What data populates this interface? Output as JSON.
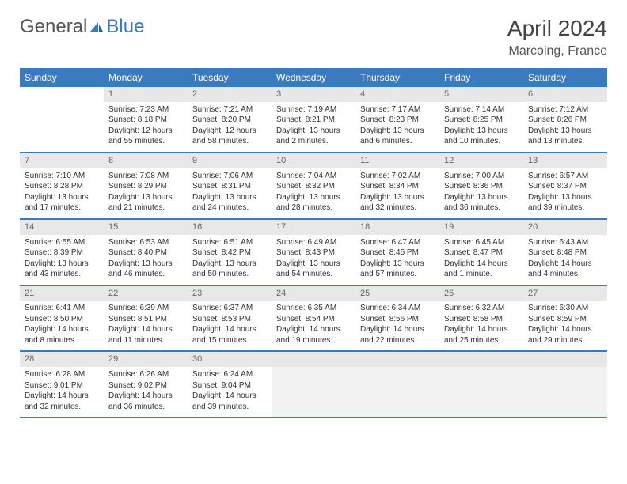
{
  "brand": {
    "part1": "General",
    "part2": "Blue"
  },
  "title": "April 2024",
  "location": "Marcoing, France",
  "colors": {
    "header_bg": "#3a7bbf",
    "daynum_bg": "#e8e8e8",
    "trailing_bg": "#f2f2f2",
    "text": "#333333",
    "title_text": "#444444"
  },
  "day_headers": [
    "Sunday",
    "Monday",
    "Tuesday",
    "Wednesday",
    "Thursday",
    "Friday",
    "Saturday"
  ],
  "weeks": [
    [
      {
        "n": "",
        "sr": "",
        "ss": "",
        "d1": "",
        "d2": "",
        "empty": true
      },
      {
        "n": "1",
        "sr": "Sunrise: 7:23 AM",
        "ss": "Sunset: 8:18 PM",
        "d1": "Daylight: 12 hours",
        "d2": "and 55 minutes."
      },
      {
        "n": "2",
        "sr": "Sunrise: 7:21 AM",
        "ss": "Sunset: 8:20 PM",
        "d1": "Daylight: 12 hours",
        "d2": "and 58 minutes."
      },
      {
        "n": "3",
        "sr": "Sunrise: 7:19 AM",
        "ss": "Sunset: 8:21 PM",
        "d1": "Daylight: 13 hours",
        "d2": "and 2 minutes."
      },
      {
        "n": "4",
        "sr": "Sunrise: 7:17 AM",
        "ss": "Sunset: 8:23 PM",
        "d1": "Daylight: 13 hours",
        "d2": "and 6 minutes."
      },
      {
        "n": "5",
        "sr": "Sunrise: 7:14 AM",
        "ss": "Sunset: 8:25 PM",
        "d1": "Daylight: 13 hours",
        "d2": "and 10 minutes."
      },
      {
        "n": "6",
        "sr": "Sunrise: 7:12 AM",
        "ss": "Sunset: 8:26 PM",
        "d1": "Daylight: 13 hours",
        "d2": "and 13 minutes."
      }
    ],
    [
      {
        "n": "7",
        "sr": "Sunrise: 7:10 AM",
        "ss": "Sunset: 8:28 PM",
        "d1": "Daylight: 13 hours",
        "d2": "and 17 minutes."
      },
      {
        "n": "8",
        "sr": "Sunrise: 7:08 AM",
        "ss": "Sunset: 8:29 PM",
        "d1": "Daylight: 13 hours",
        "d2": "and 21 minutes."
      },
      {
        "n": "9",
        "sr": "Sunrise: 7:06 AM",
        "ss": "Sunset: 8:31 PM",
        "d1": "Daylight: 13 hours",
        "d2": "and 24 minutes."
      },
      {
        "n": "10",
        "sr": "Sunrise: 7:04 AM",
        "ss": "Sunset: 8:32 PM",
        "d1": "Daylight: 13 hours",
        "d2": "and 28 minutes."
      },
      {
        "n": "11",
        "sr": "Sunrise: 7:02 AM",
        "ss": "Sunset: 8:34 PM",
        "d1": "Daylight: 13 hours",
        "d2": "and 32 minutes."
      },
      {
        "n": "12",
        "sr": "Sunrise: 7:00 AM",
        "ss": "Sunset: 8:36 PM",
        "d1": "Daylight: 13 hours",
        "d2": "and 36 minutes."
      },
      {
        "n": "13",
        "sr": "Sunrise: 6:57 AM",
        "ss": "Sunset: 8:37 PM",
        "d1": "Daylight: 13 hours",
        "d2": "and 39 minutes."
      }
    ],
    [
      {
        "n": "14",
        "sr": "Sunrise: 6:55 AM",
        "ss": "Sunset: 8:39 PM",
        "d1": "Daylight: 13 hours",
        "d2": "and 43 minutes."
      },
      {
        "n": "15",
        "sr": "Sunrise: 6:53 AM",
        "ss": "Sunset: 8:40 PM",
        "d1": "Daylight: 13 hours",
        "d2": "and 46 minutes."
      },
      {
        "n": "16",
        "sr": "Sunrise: 6:51 AM",
        "ss": "Sunset: 8:42 PM",
        "d1": "Daylight: 13 hours",
        "d2": "and 50 minutes."
      },
      {
        "n": "17",
        "sr": "Sunrise: 6:49 AM",
        "ss": "Sunset: 8:43 PM",
        "d1": "Daylight: 13 hours",
        "d2": "and 54 minutes."
      },
      {
        "n": "18",
        "sr": "Sunrise: 6:47 AM",
        "ss": "Sunset: 8:45 PM",
        "d1": "Daylight: 13 hours",
        "d2": "and 57 minutes."
      },
      {
        "n": "19",
        "sr": "Sunrise: 6:45 AM",
        "ss": "Sunset: 8:47 PM",
        "d1": "Daylight: 14 hours",
        "d2": "and 1 minute."
      },
      {
        "n": "20",
        "sr": "Sunrise: 6:43 AM",
        "ss": "Sunset: 8:48 PM",
        "d1": "Daylight: 14 hours",
        "d2": "and 4 minutes."
      }
    ],
    [
      {
        "n": "21",
        "sr": "Sunrise: 6:41 AM",
        "ss": "Sunset: 8:50 PM",
        "d1": "Daylight: 14 hours",
        "d2": "and 8 minutes."
      },
      {
        "n": "22",
        "sr": "Sunrise: 6:39 AM",
        "ss": "Sunset: 8:51 PM",
        "d1": "Daylight: 14 hours",
        "d2": "and 11 minutes."
      },
      {
        "n": "23",
        "sr": "Sunrise: 6:37 AM",
        "ss": "Sunset: 8:53 PM",
        "d1": "Daylight: 14 hours",
        "d2": "and 15 minutes."
      },
      {
        "n": "24",
        "sr": "Sunrise: 6:35 AM",
        "ss": "Sunset: 8:54 PM",
        "d1": "Daylight: 14 hours",
        "d2": "and 19 minutes."
      },
      {
        "n": "25",
        "sr": "Sunrise: 6:34 AM",
        "ss": "Sunset: 8:56 PM",
        "d1": "Daylight: 14 hours",
        "d2": "and 22 minutes."
      },
      {
        "n": "26",
        "sr": "Sunrise: 6:32 AM",
        "ss": "Sunset: 8:58 PM",
        "d1": "Daylight: 14 hours",
        "d2": "and 25 minutes."
      },
      {
        "n": "27",
        "sr": "Sunrise: 6:30 AM",
        "ss": "Sunset: 8:59 PM",
        "d1": "Daylight: 14 hours",
        "d2": "and 29 minutes."
      }
    ],
    [
      {
        "n": "28",
        "sr": "Sunrise: 6:28 AM",
        "ss": "Sunset: 9:01 PM",
        "d1": "Daylight: 14 hours",
        "d2": "and 32 minutes."
      },
      {
        "n": "29",
        "sr": "Sunrise: 6:26 AM",
        "ss": "Sunset: 9:02 PM",
        "d1": "Daylight: 14 hours",
        "d2": "and 36 minutes."
      },
      {
        "n": "30",
        "sr": "Sunrise: 6:24 AM",
        "ss": "Sunset: 9:04 PM",
        "d1": "Daylight: 14 hours",
        "d2": "and 39 minutes."
      },
      {
        "n": "",
        "sr": "",
        "ss": "",
        "d1": "",
        "d2": "",
        "trailing": true
      },
      {
        "n": "",
        "sr": "",
        "ss": "",
        "d1": "",
        "d2": "",
        "trailing": true
      },
      {
        "n": "",
        "sr": "",
        "ss": "",
        "d1": "",
        "d2": "",
        "trailing": true
      },
      {
        "n": "",
        "sr": "",
        "ss": "",
        "d1": "",
        "d2": "",
        "trailing": true
      }
    ]
  ]
}
